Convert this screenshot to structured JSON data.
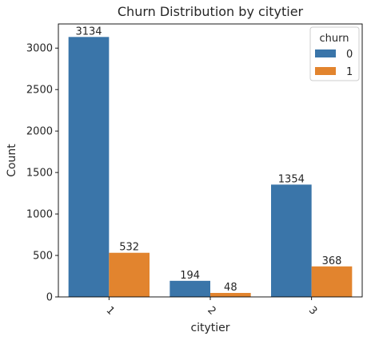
{
  "chart_data": {
    "type": "bar",
    "title": "Churn Distribution by citytier",
    "xlabel": "citytier",
    "ylabel": "Count",
    "categories": [
      "1",
      "2",
      "3"
    ],
    "series": [
      {
        "name": "0",
        "values": [
          3134,
          194,
          1354
        ],
        "color": "#3a75a9"
      },
      {
        "name": "1",
        "values": [
          532,
          48,
          368
        ],
        "color": "#e2842e"
      }
    ],
    "ylim": [
      0,
      3291
    ],
    "yticks": [
      0,
      500,
      1000,
      1500,
      2000,
      2500,
      3000
    ],
    "legend": {
      "title": "churn",
      "placement": "top-right"
    },
    "grid": false,
    "xtick_rotation": 45
  }
}
